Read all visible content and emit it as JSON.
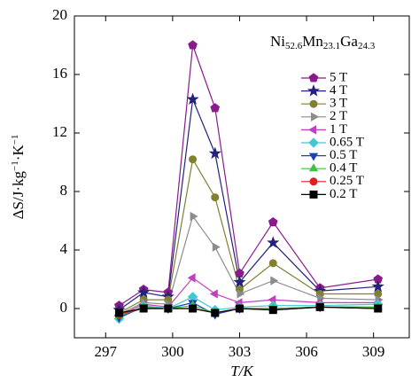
{
  "chart_data": {
    "type": "line",
    "annotation": [
      {
        "text": "Ni",
        "sub": "52.6"
      },
      {
        "text": "Mn",
        "sub": "23.1"
      },
      {
        "text": "Ga",
        "sub": "24.3"
      }
    ],
    "xlabel": "T/K",
    "ylabel": [
      {
        "text": "ΔS/J·kg",
        "sup": "−1"
      },
      {
        "text": "·K",
        "sup": "−1"
      }
    ],
    "x": [
      297.6,
      298.7,
      299.8,
      300.9,
      301.9,
      303.0,
      304.5,
      306.6,
      309.2
    ],
    "xlim": [
      295.6,
      310.6
    ],
    "xticks": [
      297,
      300,
      303,
      306,
      309
    ],
    "ylim": [
      -2,
      20
    ],
    "yticks": [
      0,
      4,
      8,
      12,
      16,
      20
    ],
    "legend": "right",
    "series": [
      {
        "name": "5 T",
        "color": "#8b1a8b",
        "marker": "pentagon",
        "values": [
          0.2,
          1.3,
          1.1,
          18.0,
          13.7,
          2.4,
          5.9,
          1.4,
          2.0
        ]
      },
      {
        "name": "4 T",
        "color": "#23237a",
        "marker": "star",
        "values": [
          -0.1,
          1.1,
          0.8,
          14.3,
          10.6,
          1.8,
          4.5,
          1.2,
          1.5
        ]
      },
      {
        "name": "3 T",
        "color": "#808030",
        "marker": "circle",
        "values": [
          -0.3,
          0.6,
          0.6,
          10.2,
          7.6,
          1.3,
          3.1,
          1.0,
          1.0
        ]
      },
      {
        "name": "2 T",
        "color": "#8c8c8c",
        "marker": "triangle-right",
        "values": [
          -0.4,
          0.4,
          0.3,
          6.3,
          4.2,
          1.0,
          1.9,
          0.7,
          0.6
        ]
      },
      {
        "name": "1 T",
        "color": "#c040c0",
        "marker": "triangle-left",
        "values": [
          -0.5,
          0.3,
          0.1,
          2.1,
          1.0,
          0.4,
          0.6,
          0.4,
          0.4
        ]
      },
      {
        "name": "0.65 T",
        "color": "#40c8d0",
        "marker": "diamond",
        "values": [
          -0.7,
          0.2,
          0.0,
          0.8,
          -0.1,
          0.1,
          0.2,
          0.2,
          0.3
        ]
      },
      {
        "name": "0.5 T",
        "color": "#2040c0",
        "marker": "triangle-down",
        "values": [
          -0.6,
          0.1,
          0.0,
          0.4,
          -0.4,
          0.0,
          0.0,
          0.1,
          0.1
        ]
      },
      {
        "name": "0.4 T",
        "color": "#40c040",
        "marker": "triangle-up",
        "values": [
          -0.5,
          0.1,
          0.0,
          0.2,
          -0.3,
          0.0,
          0.0,
          0.1,
          0.1
        ]
      },
      {
        "name": "0.25 T",
        "color": "#e02020",
        "marker": "circle",
        "values": [
          -0.4,
          0.0,
          0.0,
          0.0,
          -0.3,
          0.0,
          -0.1,
          0.1,
          0.0
        ]
      },
      {
        "name": "0.2 T",
        "color": "#000000",
        "marker": "square",
        "values": [
          -0.3,
          0.0,
          0.0,
          0.0,
          -0.3,
          0.0,
          -0.1,
          0.1,
          0.0
        ]
      }
    ]
  }
}
